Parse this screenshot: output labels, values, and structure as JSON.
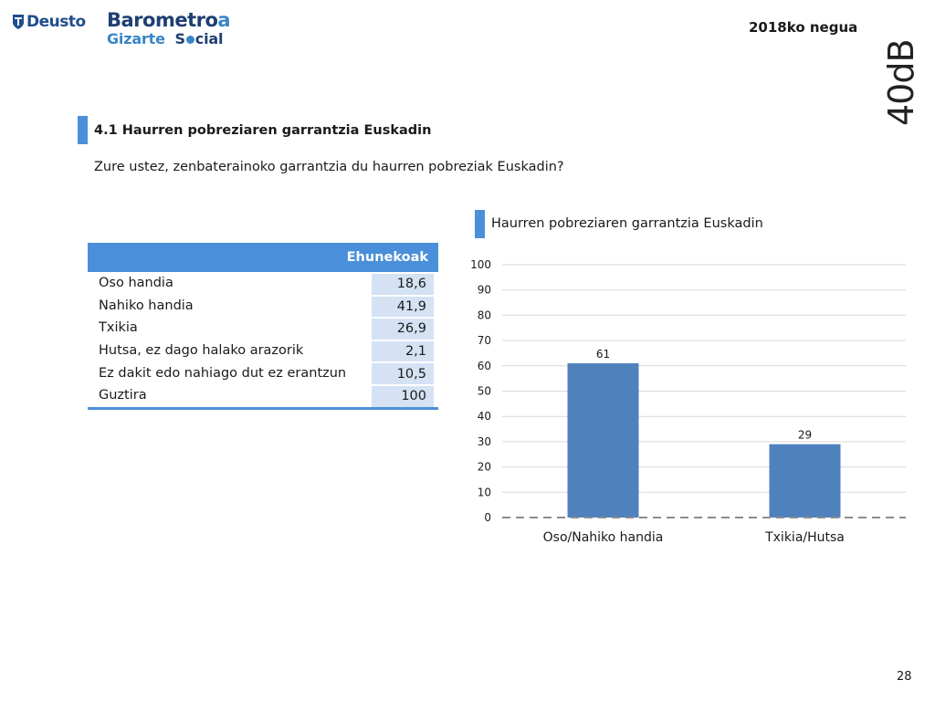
{
  "header": {
    "deusto_logo_text": "Deusto",
    "barometro_title_main": "Barometro",
    "barometro_title_accent": "a",
    "barometro_sub_1": "Gizarte",
    "barometro_sub_2a": "S",
    "barometro_sub_2b": "cial",
    "season": "2018ko negua",
    "brand": "40dB."
  },
  "section": {
    "title": "4.1 Haurren pobreziaren garrantzia Euskadin",
    "question": "Zure ustez, zenbaterainoko garrantzia du haurren pobreziak Euskadin?"
  },
  "table": {
    "header": "Ehunekoak",
    "rows": [
      {
        "label": "Oso handia",
        "value": "18,6"
      },
      {
        "label": "Nahiko handia",
        "value": "41,9"
      },
      {
        "label": "Txikia",
        "value": "26,9"
      },
      {
        "label": "Hutsa, ez dago halako arazorik",
        "value": "2,1"
      },
      {
        "label": "Ez dakit edo nahiago dut ez erantzun",
        "value": "10,5"
      },
      {
        "label": "Guztira",
        "value": "100"
      }
    ]
  },
  "chart_data": {
    "type": "bar",
    "title": "Haurren pobreziaren garrantzia Euskadin",
    "categories": [
      "Oso/Nahiko handia",
      "Txikia/Hutsa"
    ],
    "values": [
      61,
      29
    ],
    "data_labels": [
      "61",
      "29"
    ],
    "ylim": [
      0,
      100
    ],
    "yticks": [
      0,
      10,
      20,
      30,
      40,
      50,
      60,
      70,
      80,
      90,
      100
    ],
    "grid": true,
    "legend": "none",
    "bar_color": "#4f81bd"
  },
  "colors": {
    "accent": "#4a8fd9",
    "table_value_bg": "#d4e2f3"
  },
  "footer": {
    "page_number": "28"
  }
}
